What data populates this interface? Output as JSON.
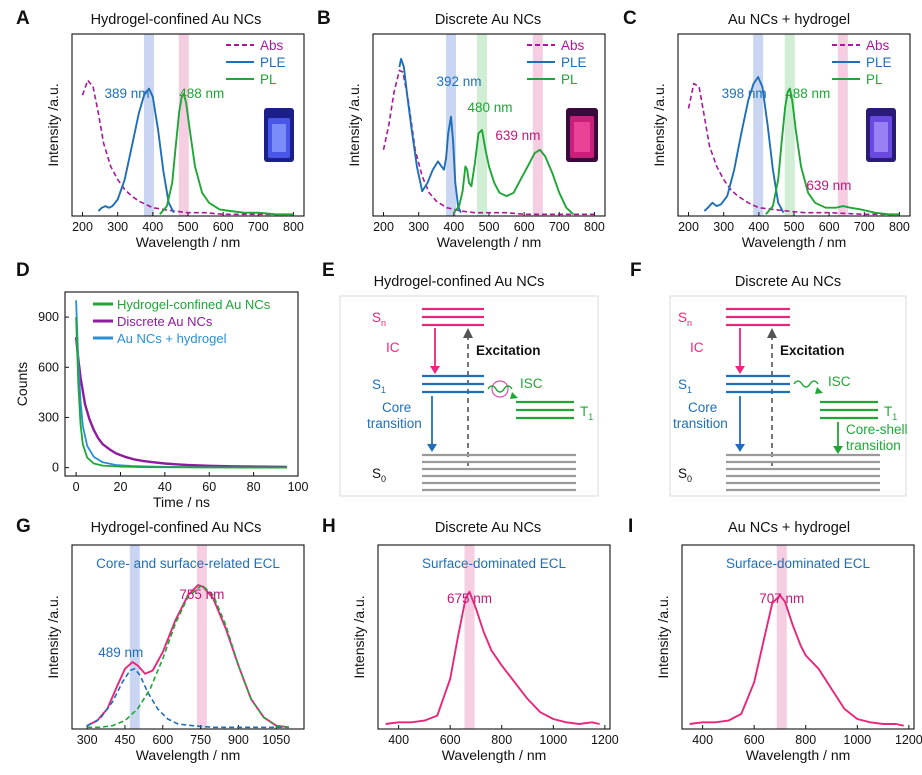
{
  "figure": {
    "panels": {
      "A": {
        "letter": "A",
        "title": "Hydrogel-confined Au NCs"
      },
      "B": {
        "letter": "B",
        "title": "Discrete Au NCs"
      },
      "C": {
        "letter": "C",
        "title": "Au NCs + hydrogel"
      },
      "D": {
        "letter": "D"
      },
      "E": {
        "letter": "E",
        "title": "Hydrogel-confined Au NCs"
      },
      "F": {
        "letter": "F",
        "title": "Discrete Au NCs"
      },
      "G": {
        "letter": "G",
        "title": "Hydrogel-confined Au NCs"
      },
      "H": {
        "letter": "H",
        "title": "Discrete Au NCs"
      },
      "I": {
        "letter": "I",
        "title": "Au NCs + hydrogel"
      }
    },
    "colors": {
      "abs": "#a8189a",
      "ple": "#1f6fb8",
      "pl": "#1fa637",
      "magenta": "#e8267c",
      "peak_blue": "#1f6fb8",
      "peak_green": "#1fa637",
      "peak_magenta": "#c0187a",
      "band_blue": "#b8c8ec",
      "band_green": "#bfe8c4",
      "band_pink": "#f2bdd8",
      "grey": "#9a9a9a",
      "purple": "#8e1c9e",
      "cyan": "#2a8fd6"
    },
    "diagram_E": {
      "sn": "S",
      "sn_sub": "n",
      "s1": "S",
      "s1_sub": "1",
      "t1": "T",
      "t1_sub": "1",
      "s0": "S",
      "s0_sub": "0",
      "ic": "IC",
      "excitation": "Excitation",
      "isc": "ISC",
      "core": "Core",
      "transition": "transition"
    },
    "diagram_F": {
      "sn": "S",
      "sn_sub": "n",
      "s1": "S",
      "s1_sub": "1",
      "t1": "T",
      "t1_sub": "1",
      "s0": "S",
      "s0_sub": "0",
      "ic": "IC",
      "excitation": "Excitation",
      "isc": "ISC",
      "core": "Core",
      "transition": "transition",
      "coreshell": "Core-shell",
      "coreshell2": "transition"
    }
  },
  "chart_data": [
    {
      "panel": "A",
      "type": "line",
      "title": "Hydrogel-confined Au NCs",
      "xlabel": "Wavelength / nm",
      "ylabel": "Intensity /a.u.",
      "xlim": [
        170,
        830
      ],
      "xticks": [
        200,
        300,
        400,
        500,
        600,
        700,
        800
      ],
      "ylim": [
        0,
        1.1
      ],
      "legend": [
        "Abs",
        "PLE",
        "PL"
      ],
      "legend_position": "top-right",
      "annotations": [
        {
          "text": "389 nm",
          "x": 389,
          "color": "blue"
        },
        {
          "text": "488 nm",
          "x": 488,
          "color": "green"
        }
      ],
      "series": [
        {
          "name": "Abs",
          "style": "dashed",
          "x": [
            200,
            215,
            230,
            245,
            260,
            280,
            300,
            320,
            340,
            360,
            380,
            400,
            430,
            460,
            500,
            550,
            600,
            700,
            800
          ],
          "y": [
            0.73,
            0.82,
            0.78,
            0.62,
            0.44,
            0.3,
            0.22,
            0.16,
            0.12,
            0.09,
            0.07,
            0.05,
            0.04,
            0.03,
            0.02,
            0.02,
            0.01,
            0.01,
            0.01
          ]
        },
        {
          "name": "PLE",
          "style": "solid",
          "x": [
            245,
            255,
            265,
            275,
            285,
            300,
            320,
            340,
            360,
            375,
            389,
            400,
            415,
            430,
            445,
            460
          ],
          "y": [
            0.03,
            0.05,
            0.06,
            0.05,
            0.06,
            0.1,
            0.22,
            0.42,
            0.62,
            0.73,
            0.77,
            0.72,
            0.52,
            0.27,
            0.08,
            0.02
          ]
        },
        {
          "name": "PL",
          "style": "solid",
          "x": [
            420,
            440,
            455,
            465,
            475,
            482,
            488,
            495,
            505,
            520,
            540,
            560,
            590,
            620,
            660,
            700,
            750,
            800
          ],
          "y": [
            0.01,
            0.06,
            0.2,
            0.42,
            0.63,
            0.72,
            0.74,
            0.68,
            0.52,
            0.3,
            0.14,
            0.08,
            0.04,
            0.03,
            0.02,
            0.02,
            0.01,
            0.01
          ]
        }
      ]
    },
    {
      "panel": "B",
      "type": "line",
      "title": "Discrete Au NCs",
      "xlabel": "Wavelength / nm",
      "ylabel": "Intensity /a.u.",
      "xlim": [
        170,
        830
      ],
      "xticks": [
        200,
        300,
        400,
        500,
        600,
        700,
        800
      ],
      "ylim": [
        0,
        1.1
      ],
      "legend": [
        "Abs",
        "PLE",
        "PL"
      ],
      "legend_position": "top-right",
      "annotations": [
        {
          "text": "392 nm",
          "x": 392,
          "color": "blue"
        },
        {
          "text": "480 nm",
          "x": 480,
          "color": "green"
        },
        {
          "text": "639 nm",
          "x": 639,
          "color": "magenta"
        }
      ],
      "series": [
        {
          "name": "Abs",
          "style": "dashed",
          "x": [
            200,
            215,
            230,
            245,
            255,
            270,
            290,
            310,
            330,
            350,
            380,
            420,
            460,
            500,
            550,
            600,
            700,
            800
          ],
          "y": [
            0.4,
            0.55,
            0.75,
            0.88,
            0.87,
            0.7,
            0.4,
            0.24,
            0.14,
            0.09,
            0.05,
            0.03,
            0.02,
            0.02,
            0.02,
            0.01,
            0.01,
            0.01
          ]
        },
        {
          "name": "PLE",
          "style": "solid",
          "x": [
            245,
            250,
            258,
            268,
            280,
            295,
            310,
            325,
            340,
            355,
            365,
            372,
            378,
            384,
            392,
            398,
            404,
            412,
            420
          ],
          "y": [
            0.9,
            0.95,
            0.9,
            0.72,
            0.52,
            0.3,
            0.15,
            0.2,
            0.28,
            0.33,
            0.3,
            0.28,
            0.35,
            0.5,
            0.6,
            0.45,
            0.2,
            0.06,
            0.02
          ]
        },
        {
          "name": "PL",
          "style": "solid",
          "x": [
            400,
            415,
            425,
            433,
            438,
            443,
            450,
            460,
            470,
            480,
            490,
            500,
            515,
            530,
            550,
            570,
            590,
            610,
            630,
            645,
            660,
            680,
            700,
            720,
            740
          ],
          "y": [
            0.02,
            0.06,
            0.15,
            0.3,
            0.28,
            0.2,
            0.18,
            0.32,
            0.5,
            0.52,
            0.4,
            0.3,
            0.2,
            0.14,
            0.12,
            0.14,
            0.22,
            0.3,
            0.38,
            0.4,
            0.36,
            0.26,
            0.14,
            0.05,
            0.01
          ]
        }
      ]
    },
    {
      "panel": "C",
      "type": "line",
      "title": "Au NCs + hydrogel",
      "xlabel": "Wavelength / nm",
      "ylabel": "Intensity /a.u.",
      "xlim": [
        170,
        830
      ],
      "xticks": [
        200,
        300,
        400,
        500,
        600,
        700,
        800
      ],
      "ylim": [
        0,
        1.1
      ],
      "legend": [
        "Abs",
        "PLE",
        "PL"
      ],
      "legend_position": "top-right",
      "annotations": [
        {
          "text": "398 nm",
          "x": 398,
          "color": "blue"
        },
        {
          "text": "488 nm",
          "x": 488,
          "color": "green"
        },
        {
          "text": "639 nm",
          "x": 639,
          "color": "magenta"
        }
      ],
      "series": [
        {
          "name": "Abs",
          "style": "dashed",
          "x": [
            200,
            215,
            230,
            245,
            260,
            280,
            300,
            320,
            340,
            370,
            400,
            440,
            480,
            530,
            600,
            700,
            800
          ],
          "y": [
            0.65,
            0.8,
            0.78,
            0.6,
            0.42,
            0.3,
            0.22,
            0.16,
            0.12,
            0.08,
            0.05,
            0.04,
            0.03,
            0.02,
            0.02,
            0.01,
            0.01
          ]
        },
        {
          "name": "PLE",
          "style": "solid",
          "x": [
            245,
            255,
            268,
            280,
            292,
            310,
            330,
            350,
            370,
            385,
            398,
            410,
            425,
            440,
            455,
            470
          ],
          "y": [
            0.03,
            0.05,
            0.08,
            0.06,
            0.07,
            0.12,
            0.28,
            0.5,
            0.7,
            0.8,
            0.84,
            0.78,
            0.55,
            0.28,
            0.08,
            0.02
          ]
        },
        {
          "name": "PL",
          "style": "solid",
          "x": [
            420,
            440,
            455,
            465,
            475,
            482,
            488,
            495,
            505,
            520,
            540,
            560,
            590,
            620,
            640,
            660,
            690,
            730,
            770,
            800
          ],
          "y": [
            0.01,
            0.06,
            0.22,
            0.45,
            0.66,
            0.75,
            0.77,
            0.7,
            0.52,
            0.3,
            0.14,
            0.08,
            0.05,
            0.05,
            0.06,
            0.05,
            0.04,
            0.02,
            0.01,
            0.01
          ]
        }
      ]
    },
    {
      "panel": "D",
      "type": "line",
      "xlabel": "Time / ns",
      "ylabel": "Counts",
      "xlim": [
        -5,
        100
      ],
      "xticks": [
        0,
        20,
        40,
        60,
        80,
        100
      ],
      "ylim": [
        -50,
        1050
      ],
      "yticks": [
        0,
        300,
        600,
        900
      ],
      "legend_position": "top-right",
      "series": [
        {
          "name": "Hydrogel-confined Au NCs",
          "x": [
            0,
            1,
            2,
            3,
            5,
            8,
            12,
            20,
            30,
            50,
            70,
            95
          ],
          "y": [
            900,
            500,
            260,
            140,
            60,
            25,
            12,
            6,
            3,
            2,
            1,
            0
          ]
        },
        {
          "name": "Discrete Au NCs",
          "x": [
            0,
            1,
            2,
            4,
            6,
            8,
            10,
            12,
            15,
            18,
            22,
            26,
            30,
            35,
            40,
            45,
            50,
            60,
            70,
            80,
            95
          ],
          "y": [
            780,
            650,
            540,
            380,
            290,
            225,
            175,
            140,
            110,
            85,
            65,
            50,
            40,
            32,
            25,
            20,
            16,
            11,
            8,
            6,
            4
          ]
        },
        {
          "name": "Au NCs + hydrogel",
          "x": [
            0,
            1,
            2,
            3,
            5,
            8,
            12,
            18,
            25,
            35,
            50,
            70,
            95
          ],
          "y": [
            1000,
            640,
            400,
            250,
            130,
            65,
            32,
            16,
            10,
            6,
            3,
            2,
            1
          ]
        }
      ]
    },
    {
      "panel": "G",
      "type": "line",
      "title": "Hydrogel-confined Au NCs",
      "xlabel": "Wavelength / nm",
      "ylabel": "Intensity /a.u.",
      "xlim": [
        240,
        1160
      ],
      "xticks": [
        300,
        450,
        600,
        750,
        900,
        1050
      ],
      "ylim": [
        0,
        1.1
      ],
      "annotations": [
        {
          "text": "Core- and surface-related ECL"
        },
        {
          "text": "489 nm",
          "x": 489
        },
        {
          "text": "755 nm",
          "x": 755
        }
      ],
      "series": [
        {
          "name": "ECL",
          "style": "solid",
          "x": [
            300,
            340,
            380,
            420,
            450,
            480,
            500,
            530,
            560,
            600,
            650,
            700,
            740,
            760,
            800,
            850,
            900,
            950,
            1000,
            1050,
            1100
          ],
          "y": [
            0.02,
            0.05,
            0.12,
            0.26,
            0.36,
            0.4,
            0.38,
            0.33,
            0.35,
            0.46,
            0.65,
            0.8,
            0.86,
            0.85,
            0.78,
            0.6,
            0.38,
            0.18,
            0.07,
            0.02,
            0.01
          ]
        },
        {
          "name": "core",
          "style": "dashed",
          "x": [
            300,
            350,
            400,
            440,
            470,
            489,
            510,
            540,
            580,
            620,
            660,
            720,
            800,
            900,
            1000,
            1100
          ],
          "y": [
            0.02,
            0.06,
            0.16,
            0.28,
            0.35,
            0.36,
            0.32,
            0.22,
            0.12,
            0.06,
            0.03,
            0.02,
            0.01,
            0.01,
            0.01,
            0.01
          ]
        },
        {
          "name": "surface",
          "style": "dashed",
          "x": [
            300,
            350,
            400,
            450,
            500,
            550,
            600,
            650,
            700,
            755,
            800,
            850,
            900,
            950,
            1000,
            1050,
            1100
          ],
          "y": [
            0.01,
            0.01,
            0.02,
            0.05,
            0.12,
            0.24,
            0.42,
            0.63,
            0.79,
            0.86,
            0.8,
            0.62,
            0.38,
            0.18,
            0.07,
            0.02,
            0.01
          ]
        }
      ]
    },
    {
      "panel": "H",
      "type": "line",
      "title": "Discrete Au NCs",
      "xlabel": "Wavelength / nm",
      "ylabel": "Intensity /a.u.",
      "xlim": [
        320,
        1220
      ],
      "xticks": [
        400,
        600,
        800,
        1000,
        1200
      ],
      "ylim": [
        0,
        1.1
      ],
      "annotations": [
        {
          "text": "Surface-dominated ECL"
        },
        {
          "text": "675 nm",
          "x": 675
        }
      ],
      "series": [
        {
          "name": "ECL",
          "style": "solid",
          "x": [
            350,
            400,
            450,
            500,
            550,
            600,
            630,
            660,
            675,
            700,
            730,
            760,
            800,
            850,
            900,
            950,
            1000,
            1050,
            1100,
            1150,
            1180
          ],
          "y": [
            0.03,
            0.04,
            0.04,
            0.05,
            0.08,
            0.3,
            0.55,
            0.78,
            0.82,
            0.72,
            0.58,
            0.47,
            0.38,
            0.28,
            0.18,
            0.1,
            0.06,
            0.04,
            0.03,
            0.04,
            0.03
          ]
        }
      ]
    },
    {
      "panel": "I",
      "type": "line",
      "title": "Au NCs + hydrogel",
      "xlabel": "Wavelength / nm",
      "ylabel": "Intensity /a.u.",
      "xlim": [
        320,
        1220
      ],
      "xticks": [
        400,
        600,
        800,
        1000,
        1200
      ],
      "ylim": [
        0,
        1.1
      ],
      "annotations": [
        {
          "text": "Surface-dominated ECL"
        },
        {
          "text": "707 nm",
          "x": 707
        }
      ],
      "series": [
        {
          "name": "ECL",
          "style": "solid",
          "x": [
            350,
            400,
            450,
            500,
            550,
            600,
            640,
            670,
            700,
            720,
            750,
            780,
            800,
            850,
            900,
            950,
            1000,
            1050,
            1100,
            1150,
            1180
          ],
          "y": [
            0.03,
            0.04,
            0.04,
            0.05,
            0.09,
            0.28,
            0.55,
            0.75,
            0.8,
            0.76,
            0.62,
            0.5,
            0.44,
            0.36,
            0.24,
            0.12,
            0.06,
            0.04,
            0.03,
            0.03,
            0.02
          ]
        }
      ]
    }
  ]
}
